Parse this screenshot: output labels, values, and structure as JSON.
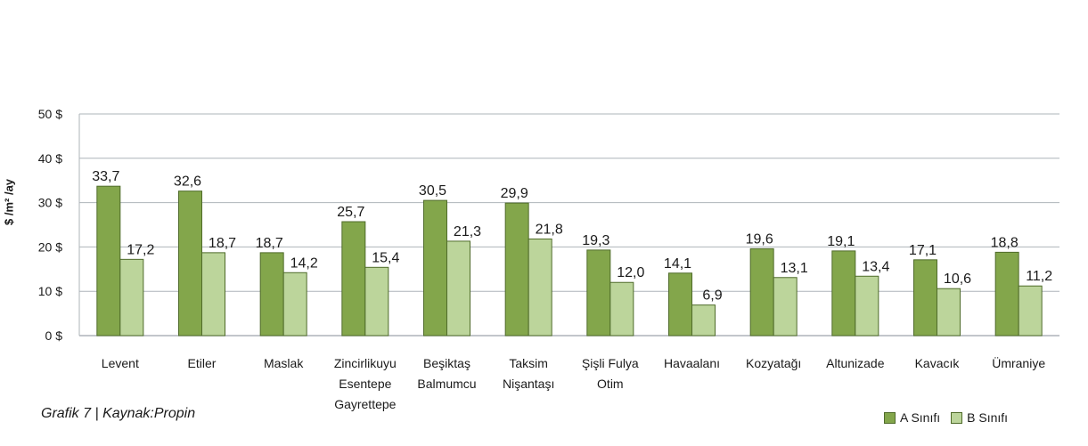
{
  "caption": "Grafik 7 | Kaynak:Propin",
  "colors": {
    "series_a": "#83a64b",
    "series_b": "#bcd59b",
    "stroke": "#4f6b2a",
    "grid": "#aeb4ba"
  },
  "chart_data": {
    "type": "bar",
    "ylabel": "$ /m² /ay",
    "ylim": [
      0,
      50
    ],
    "yticks": [
      "0 $",
      "10 $",
      "20 $",
      "30 $",
      "40 $",
      "50 $"
    ],
    "grid": true,
    "legend_position": "bottom-right",
    "categories": [
      [
        "Levent"
      ],
      [
        "Etiler"
      ],
      [
        "Maslak"
      ],
      [
        "Zincirlikuyu",
        "Esentepe",
        "Gayrettepe"
      ],
      [
        "Beşiktaş",
        "Balmumcu"
      ],
      [
        "Taksim",
        "Nişantaşı"
      ],
      [
        "Şişli Fulya",
        "Otim"
      ],
      [
        "Havaalanı"
      ],
      [
        "Kozyatağı"
      ],
      [
        "Altunizade"
      ],
      [
        "Kavacık"
      ],
      [
        "Ümraniye"
      ]
    ],
    "series": [
      {
        "name": "A Sınıfı",
        "values": [
          33.7,
          32.6,
          18.7,
          25.7,
          30.5,
          29.9,
          19.3,
          14.1,
          19.6,
          19.1,
          17.1,
          18.8
        ],
        "labels": [
          "33,7",
          "32,6",
          "18,7",
          "25,7",
          "30,5",
          "29,9",
          "19,3",
          "14,1",
          "19,6",
          "19,1",
          "17,1",
          "18,8"
        ]
      },
      {
        "name": "B Sınıfı",
        "values": [
          17.2,
          18.7,
          14.2,
          15.4,
          21.3,
          21.8,
          12.0,
          6.9,
          13.1,
          13.4,
          10.6,
          11.2
        ],
        "labels": [
          "17,2",
          "18,7",
          "14,2",
          "15,4",
          "21,3",
          "21,8",
          "12,0",
          "6,9",
          "13,1",
          "13,4",
          "10,6",
          "11,2"
        ]
      }
    ]
  }
}
